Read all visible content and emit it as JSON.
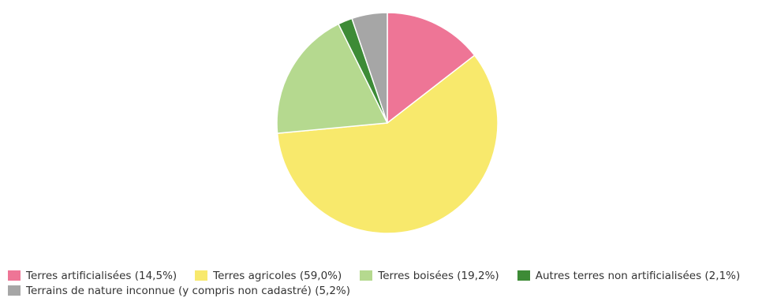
{
  "chart_data": {
    "type": "pie",
    "title": "",
    "categories": [
      "Terres artificialisées",
      "Terres agricoles",
      "Terres boisées",
      "Autres terres non artificialisées",
      "Terrains de nature inconnue (y compris non cadastré)"
    ],
    "values": [
      14.5,
      59.0,
      19.2,
      2.1,
      5.2
    ],
    "unit": "%",
    "colors": [
      "#ee7596",
      "#f8e96c",
      "#b5d98f",
      "#3d8b36",
      "#a6a6a6"
    ],
    "start_angle": "top (12 o'clock), clockwise",
    "legend_placement": "bottom",
    "legend_labels": [
      "Terres artificialisées (14,5%)",
      "Terres agricoles (59,0%)",
      "Terres boisées (19,2%)",
      "Autres terres non artificialisées (2,1%)",
      "Terrains de nature inconnue (y compris non cadastré) (5,2%)"
    ]
  }
}
